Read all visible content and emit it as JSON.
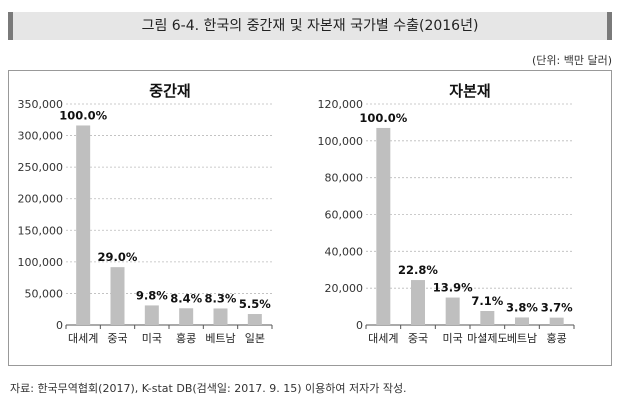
{
  "title": "그림 6-4. 한국의 중간재 및 자본재 국가별 수출(2016년)",
  "unit": "(단위: 백만 달러)",
  "source": "자료: 한국무역협회(2017), K-stat DB(검색일: 2017. 9. 15) 이용하여 저자가 작성.",
  "colors": {
    "bar": "#bfbfbf",
    "grid": "#bbbbbb"
  },
  "chart_data": [
    {
      "type": "bar",
      "title": "중간재",
      "categories": [
        "대세계",
        "중국",
        "미국",
        "홍콩",
        "베트남",
        "일본"
      ],
      "values": [
        316000,
        91600,
        31000,
        26500,
        26200,
        17400
      ],
      "labels": [
        "100.0%",
        "29.0%",
        "9.8%",
        "8.4%",
        "8.3%",
        "5.5%"
      ],
      "ylim": [
        0,
        350000
      ],
      "yticks": [
        "0",
        "50,000",
        "100,000",
        "150,000",
        "200,000",
        "250,000",
        "300,000",
        "350,000"
      ],
      "grid": true
    },
    {
      "type": "bar",
      "title": "자본재",
      "categories": [
        "대세계",
        "중국",
        "미국",
        "마셜제도",
        "베트남",
        "홍콩"
      ],
      "values": [
        107000,
        24400,
        14900,
        7600,
        4100,
        4000
      ],
      "labels": [
        "100.0%",
        "22.8%",
        "13.9%",
        "7.1%",
        "3.8%",
        "3.7%"
      ],
      "ylim": [
        0,
        120000
      ],
      "yticks": [
        "0",
        "20,000",
        "40,000",
        "60,000",
        "80,000",
        "100,000",
        "120,000"
      ],
      "grid": true
    }
  ]
}
